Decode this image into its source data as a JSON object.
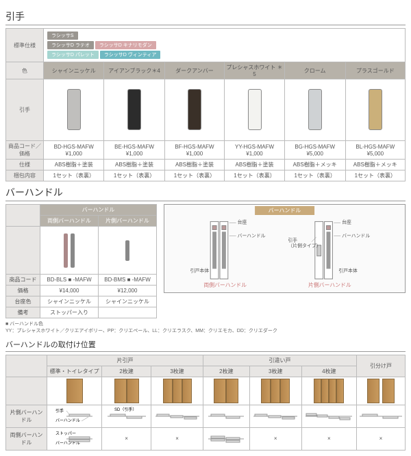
{
  "hikite": {
    "title": "引手",
    "rows": {
      "spec": "標準仕様",
      "color": "色",
      "handle": "引手",
      "code": "商品コード／価格",
      "material": "仕様",
      "pack": "梱包内容"
    },
    "badges": [
      {
        "t": "ラシッサS",
        "c": "#9a9690"
      },
      {
        "t": "ラシッサD ラテオ",
        "c": "#9a9690"
      },
      {
        "t": "ラシッサD キナリモダン",
        "c": "#d7a7a8"
      },
      {
        "t": "ラシッサD パレット",
        "c": "#a5d5d0"
      },
      {
        "t": "ラシッサD ヴィンティア",
        "c": "#6fb9c2"
      }
    ],
    "cols": [
      {
        "label": "シャインニッケル",
        "lc": "#b7b2a9",
        "hc": "#c0bfbd",
        "code": "BD-HGS-MAFW",
        "price": "¥1,000",
        "mat": "ABS樹脂＋塗装",
        "pk": "1セット（表裏）"
      },
      {
        "label": "アイアンブラック＊4",
        "lc": "#b7b2a9",
        "hc": "#2c2c2c",
        "code": "BE-HGS-MAFW",
        "price": "¥1,000",
        "mat": "ABS樹脂＋塗装",
        "pk": "1セット（表裏）"
      },
      {
        "label": "ダークアンバー",
        "lc": "#b7b2a9",
        "hc": "#3a3028",
        "code": "BF-HGS-MAFW",
        "price": "¥1,000",
        "mat": "ABS樹脂＋塗装",
        "pk": "1セット（表裏）"
      },
      {
        "label": "プレシャスホワイト ＊5",
        "lc": "#b7b2a9",
        "hc": "#f3f3f0",
        "code": "YY-HGS-MAFW",
        "price": "¥1,000",
        "mat": "ABS樹脂＋塗装",
        "pk": "1セット（表裏）"
      },
      {
        "label": "クローム",
        "lc": "#b7b2a9",
        "hc": "#cfd2d4",
        "code": "BG-HGS-MAFW",
        "price": "¥5,000",
        "mat": "ABS樹脂＋メッキ",
        "pk": "1セット（表裏）"
      },
      {
        "label": "プラスゴールド",
        "lc": "#b7b2a9",
        "hc": "#cbb07a",
        "code": "BL-HGS-MAFW",
        "price": "¥5,000",
        "mat": "ABS樹脂＋メッキ",
        "pk": "1セット（表裏）"
      }
    ]
  },
  "bar": {
    "title": "バーハンドル",
    "grpHeader": "バーハンドル",
    "cols": [
      "両側バーハンドル",
      "片側バーハンドル"
    ],
    "rows": {
      "code": "商品コード",
      "price": "価格",
      "base": "台座色",
      "note": "備考"
    },
    "data": [
      {
        "code": "BD-BLS ■ -MAFW",
        "price": "¥14,000",
        "base": "シャインニッケル",
        "note": "ストッパー入り"
      },
      {
        "code": "BD-BMS ■ -MAFW",
        "price": "¥12,000",
        "base": "シャインニッケル",
        "note": ""
      }
    ],
    "diagramTitle": "バーハンドル",
    "diagLabels": {
      "base": "台座",
      "bar": "バーハンドル",
      "hikite": "引手\n（片側タイプ）",
      "body": "引戸本体",
      "both": "両側バーハンドル",
      "one": "片側バーハンドル"
    },
    "footnoteHead": "■ バーハンドル色",
    "footnote": "YY：プレシャスホワイト／クリエアイボリー、PP：クリエペール、LL：クリエラスク、MM：クリエモカ、DD：クリエダーク"
  },
  "place": {
    "title": "バーハンドルの取付け位置",
    "topHeaders": {
      "kata": "片引戸",
      "hiki": "引違い戸",
      "wake": "引分け戸"
    },
    "sub": {
      "std": "標準・トイレタイプ",
      "n2": "2枚建",
      "n3": "3枚建",
      "n4": "4枚建"
    },
    "rows": {
      "one": "片側バーハンドル",
      "both": "両側バーハンドル"
    },
    "labels": {
      "hikite": "引手",
      "bar": "バーハンドル",
      "stop": "ストッパー",
      "sd": "SD（引手）"
    },
    "doorColor": "#b98850",
    "cross": "×"
  }
}
